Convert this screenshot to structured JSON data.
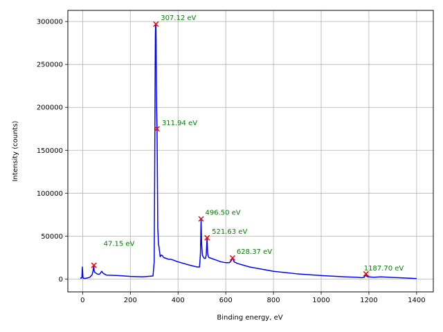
{
  "chart_data": {
    "type": "line",
    "title": "",
    "xlabel": "Binding energy, eV",
    "ylabel": "Intensity (counts)",
    "xlim": [
      -62,
      1470
    ],
    "ylim": [
      -15000,
      313000
    ],
    "grid": true,
    "xticks": [
      0,
      200,
      400,
      600,
      800,
      1000,
      1200,
      1400
    ],
    "xtick_labels": [
      "0",
      "200",
      "400",
      "600",
      "800",
      "1000",
      "1200",
      "1400"
    ],
    "yticks": [
      0,
      50000,
      100000,
      150000,
      200000,
      250000,
      300000
    ],
    "ytick_labels": [
      "0",
      "50000",
      "100000",
      "150000",
      "200000",
      "250000",
      "300000"
    ],
    "series": [
      {
        "color": "#0000ff",
        "x": [
          -10,
          -5,
          -3,
          -2,
          -1,
          0,
          1,
          2,
          3,
          5,
          10,
          20,
          30,
          40,
          44,
          46,
          47.15,
          48,
          50,
          55,
          60,
          65,
          70,
          75,
          80,
          85,
          90,
          100,
          150,
          200,
          250,
          295,
          300,
          302,
          304,
          305,
          306,
          307.12,
          308,
          309,
          310,
          311.94,
          313,
          315,
          318,
          320,
          325,
          330,
          335,
          340,
          350,
          360,
          370,
          380,
          400,
          450,
          480,
          490,
          494,
          496.5,
          499,
          502,
          505,
          510,
          515,
          518,
          521.63,
          524,
          527,
          530,
          540,
          560,
          580,
          600,
          615,
          622,
          628.37,
          635,
          650,
          700,
          800,
          900,
          1000,
          1100,
          1150,
          1170,
          1180,
          1185,
          1187.7,
          1190,
          1195,
          1200,
          1220,
          1250,
          1300,
          1350,
          1400
        ],
        "y": [
          1200,
          1000,
          2000,
          8000,
          14000,
          9000,
          3000,
          1500,
          1000,
          800,
          700,
          1200,
          2000,
          5000,
          10000,
          14000,
          16000,
          10000,
          8000,
          7000,
          6000,
          5500,
          5500,
          7000,
          9000,
          7000,
          6000,
          4500,
          4000,
          3000,
          2500,
          3500,
          20000,
          120000,
          240000,
          285000,
          296000,
          297000,
          280000,
          230000,
          200000,
          175000,
          140000,
          60000,
          40000,
          38000,
          26000,
          28000,
          27000,
          25000,
          24000,
          23000,
          23000,
          22000,
          20000,
          16000,
          14000,
          14000,
          30000,
          70000,
          40000,
          28000,
          26000,
          24000,
          24000,
          28000,
          48000,
          30000,
          26000,
          25000,
          24000,
          22000,
          20000,
          19000,
          19000,
          21000,
          24500,
          20000,
          18000,
          14000,
          9000,
          6000,
          4000,
          2500,
          2000,
          1500,
          2000,
          4000,
          6000,
          3500,
          2500,
          2500,
          2000,
          2500,
          1800,
          1200,
          500
        ]
      }
    ],
    "markers": {
      "color": "#ff0000",
      "symbol": "x",
      "points": [
        {
          "x": 47.15,
          "y": 16000
        },
        {
          "x": 307.12,
          "y": 297000
        },
        {
          "x": 311.94,
          "y": 175000
        },
        {
          "x": 496.5,
          "y": 70000
        },
        {
          "x": 521.63,
          "y": 48000
        },
        {
          "x": 628.37,
          "y": 24500
        },
        {
          "x": 1187.7,
          "y": 6000
        }
      ]
    },
    "annotations": {
      "color": "#008000",
      "items": [
        {
          "text": "47.15 eV",
          "x": 47.15,
          "y": 16000
        },
        {
          "text": "307.12 eV",
          "x": 307.12,
          "y": 297000
        },
        {
          "text": "311.94 eV",
          "x": 311.94,
          "y": 175000
        },
        {
          "text": "496.50 eV",
          "x": 496.5,
          "y": 70000
        },
        {
          "text": "521.63 eV",
          "x": 521.63,
          "y": 48000
        },
        {
          "text": "628.37 eV",
          "x": 628.37,
          "y": 24500
        },
        {
          "text": "1187.70 eV",
          "x": 1187.7,
          "y": 6000
        }
      ]
    }
  }
}
